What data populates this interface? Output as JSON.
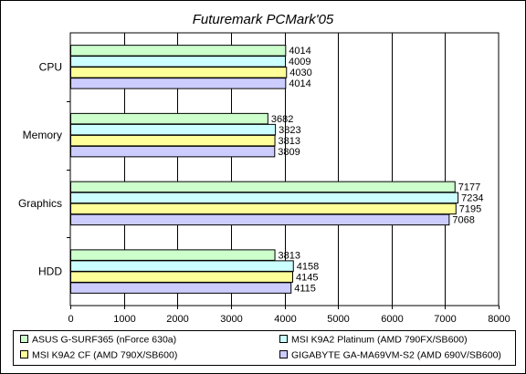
{
  "chart_data": {
    "type": "bar",
    "orientation": "horizontal",
    "title": "Futuremark PCMark'05",
    "categories": [
      "CPU",
      "Memory",
      "Graphics",
      "HDD"
    ],
    "series": [
      {
        "name": "ASUS G-SURF365 (nForce 630a)",
        "color": "#ccffcc",
        "values": [
          4014,
          3682,
          7177,
          3813
        ]
      },
      {
        "name": "MSI K9A2 Platinum (AMD 790FX/SB600)",
        "color": "#ccffff",
        "values": [
          4009,
          3823,
          7234,
          4158
        ]
      },
      {
        "name": "MSI K9A2 CF (AMD 790X/SB600)",
        "color": "#ffff99",
        "values": [
          4030,
          3813,
          7195,
          4145
        ]
      },
      {
        "name": "GIGABYTE GA-MA69VM-S2 (AMD 690V/SB600)",
        "color": "#ccccff",
        "values": [
          4014,
          3809,
          7068,
          4115
        ]
      }
    ],
    "xlim": [
      0,
      8000
    ],
    "xticks": [
      0,
      1000,
      2000,
      3000,
      4000,
      5000,
      6000,
      7000,
      8000
    ],
    "grid": true,
    "legend_position": "bottom",
    "colors": {
      "plot_background": "#ffffff",
      "grid": "#000000",
      "bar_outline": "#000000"
    }
  }
}
